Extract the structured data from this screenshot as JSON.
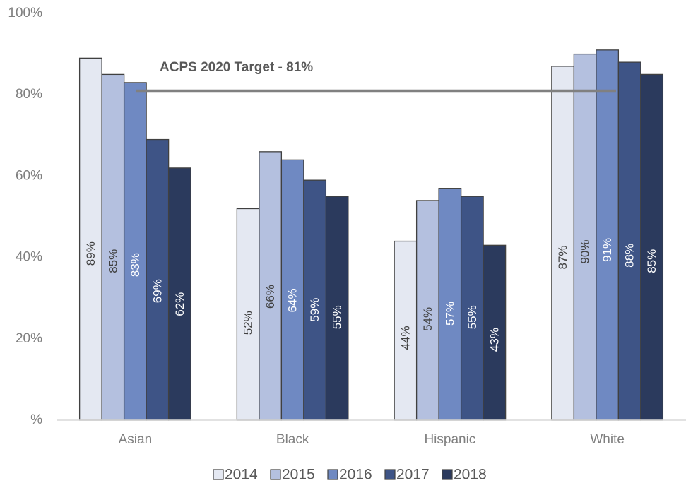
{
  "chart_data": {
    "type": "bar",
    "title": "",
    "xlabel": "",
    "ylabel": "",
    "categories": [
      "Asian",
      "Black",
      "Hispanic",
      "White"
    ],
    "ylim": [
      0,
      100
    ],
    "yticks": [
      0,
      20,
      40,
      60,
      80,
      100
    ],
    "ytick_labels": [
      "%",
      "20%",
      "40%",
      "60%",
      "80%",
      "100%"
    ],
    "series": [
      {
        "name": "2014",
        "color": "#e4e8f2",
        "label_color": "#404040",
        "values": [
          89,
          52,
          44,
          87
        ],
        "labels": [
          "89%",
          "52%",
          "44%",
          "87%"
        ]
      },
      {
        "name": "2015",
        "color": "#b4c0df",
        "label_color": "#404040",
        "values": [
          85,
          66,
          54,
          90
        ],
        "labels": [
          "85%",
          "66%",
          "54%",
          "90%"
        ]
      },
      {
        "name": "2016",
        "color": "#6f89c2",
        "label_color": "#ffffff",
        "values": [
          83,
          64,
          57,
          91
        ],
        "labels": [
          "83%",
          "64%",
          "57%",
          "91%"
        ]
      },
      {
        "name": "2017",
        "color": "#3e5486",
        "label_color": "#ffffff",
        "values": [
          69,
          59,
          55,
          88
        ],
        "labels": [
          "69%",
          "59%",
          "55%",
          "88%"
        ]
      },
      {
        "name": "2018",
        "color": "#2b3a5d",
        "label_color": "#ffffff",
        "values": [
          62,
          55,
          43,
          85
        ],
        "labels": [
          "62%",
          "55%",
          "43%",
          "85%"
        ]
      }
    ],
    "target": {
      "label": "ACPS 2020 Target - 81%",
      "value": 81,
      "color": "#808080"
    },
    "legend_position": "bottom",
    "grid": false
  }
}
